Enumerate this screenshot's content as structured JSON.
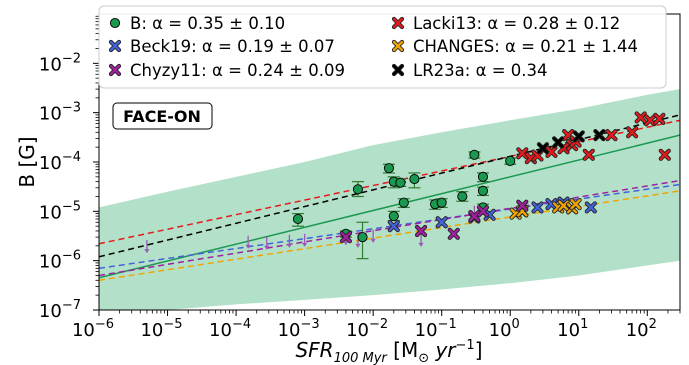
{
  "chart_data": {
    "type": "scatter",
    "xlabel": "SFR_{100 Myr} [M_⊙ yr^{-1}]",
    "ylabel": "B [G]",
    "xscale": "log",
    "yscale": "log",
    "xlim": [
      1e-06,
      300
    ],
    "ylim": [
      1e-07,
      0.1
    ],
    "annotation": "FACE-ON",
    "x_tick_labels": [
      "10^-6",
      "10^-5",
      "10^-4",
      "10^-3",
      "10^-2",
      "10^-1",
      "10^0",
      "10^1",
      "10^2"
    ],
    "y_tick_labels": [
      "10^-7",
      "10^-6",
      "10^-5",
      "10^-4",
      "10^-3",
      "10^-2"
    ],
    "legend": {
      "placement": "top",
      "entries": [
        {
          "key": "B",
          "label": "B: α = 0.35 ± 0.10",
          "color": "#1a9850",
          "marker": "circle"
        },
        {
          "key": "Lacki13",
          "label": "Lacki13: α = 0.28 ± 0.12",
          "color": "#e41a1c",
          "marker": "x"
        },
        {
          "key": "Beck19",
          "label": "Beck19: α = 0.19 ± 0.07",
          "color": "#4363d8",
          "marker": "x"
        },
        {
          "key": "CHANGES",
          "label": "CHANGES: α = 0.21 ± 1.44",
          "color": "#f0a500",
          "marker": "x"
        },
        {
          "key": "Chyzy11",
          "label": "Chyzy11: α = 0.24 ± 0.09",
          "color": "#a020a0",
          "marker": "x"
        },
        {
          "key": "LR23a",
          "label": "LR23a: α = 0.34",
          "color": "#000000",
          "marker": "x"
        }
      ]
    },
    "band": {
      "color": "#74c69d",
      "lower": [
        [
          1e-06,
          7e-08
        ],
        [
          1e-05,
          1e-07
        ],
        [
          0.0001,
          1.3e-07
        ],
        [
          0.001,
          1.6e-07
        ],
        [
          0.01,
          2e-07
        ],
        [
          0.1,
          2.6e-07
        ],
        [
          1,
          3.5e-07
        ],
        [
          10,
          5e-07
        ],
        [
          100,
          8e-07
        ],
        [
          300,
          1e-06
        ]
      ],
      "upper": [
        [
          1e-06,
          1.2e-05
        ],
        [
          1e-05,
          2.5e-05
        ],
        [
          0.0001,
          5e-05
        ],
        [
          0.001,
          0.0001
        ],
        [
          0.01,
          0.00022
        ],
        [
          0.1,
          0.0004
        ],
        [
          1,
          0.0007
        ],
        [
          10,
          0.0012
        ],
        [
          100,
          0.0023
        ],
        [
          300,
          0.003
        ]
      ]
    },
    "fit_lines": [
      {
        "series": "B",
        "color": "#1a9850",
        "dash": "solid",
        "points": [
          [
            1e-06,
            4.5e-07
          ],
          [
            300,
            0.00035
          ]
        ]
      },
      {
        "series": "Lacki13",
        "color": "#e41a1c",
        "dash": "dashed",
        "points": [
          [
            1e-06,
            2.2e-06
          ],
          [
            300,
            0.0007
          ]
        ]
      },
      {
        "series": "LR23a",
        "color": "#000000",
        "dash": "dashed",
        "points": [
          [
            1e-06,
            1.2e-06
          ],
          [
            300,
            0.0009
          ]
        ]
      },
      {
        "series": "Beck19",
        "color": "#4363d8",
        "dash": "dashed",
        "points": [
          [
            1e-06,
            7e-07
          ],
          [
            300,
            3.5e-05
          ]
        ]
      },
      {
        "series": "Chyzy11",
        "color": "#a020a0",
        "dash": "dashed",
        "points": [
          [
            1e-06,
            5e-07
          ],
          [
            300,
            4.2e-05
          ]
        ]
      },
      {
        "series": "CHANGES",
        "color": "#f0a500",
        "dash": "dashed",
        "points": [
          [
            1e-06,
            4e-07
          ],
          [
            300,
            2.6e-05
          ]
        ]
      }
    ],
    "series": [
      {
        "name": "B",
        "color": "#1a9850",
        "marker": "circle",
        "points": [
          {
            "x": 0.0008,
            "y": 7e-06,
            "yerr_lo": 5e-06,
            "yerr_hi": 9e-06
          },
          {
            "x": 0.004,
            "y": 3.5e-06,
            "yerr_lo": 3e-06,
            "yerr_hi": 4e-06
          },
          {
            "x": 0.006,
            "y": 2.8e-05,
            "yerr_lo": 2e-05,
            "yerr_hi": 4e-05
          },
          {
            "x": 0.007,
            "y": 3e-06,
            "yerr_lo": 1.1e-06,
            "yerr_hi": 6e-06
          },
          {
            "x": 0.017,
            "y": 7.5e-05,
            "yerr_lo": 6e-05,
            "yerr_hi": 9e-05
          },
          {
            "x": 0.02,
            "y": 4e-05,
            "yerr_lo": 3e-05,
            "yerr_hi": 5e-05
          },
          {
            "x": 0.025,
            "y": 3.8e-05,
            "yerr_lo": 3.2e-05,
            "yerr_hi": 4.5e-05
          },
          {
            "x": 0.028,
            "y": 1.5e-05,
            "yerr_lo": 1.2e-05,
            "yerr_hi": 1.8e-05
          },
          {
            "x": 0.02,
            "y": 8e-06,
            "yerr_lo": 6.5e-06,
            "yerr_hi": 1e-05
          },
          {
            "x": 0.04,
            "y": 4.5e-05,
            "yerr_lo": 3e-05,
            "yerr_hi": 6e-05
          },
          {
            "x": 0.08,
            "y": 1.4e-05,
            "yerr_lo": 1.1e-05,
            "yerr_hi": 1.7e-05
          },
          {
            "x": 0.1,
            "y": 1.5e-05,
            "yerr_lo": 1.2e-05,
            "yerr_hi": 1.8e-05
          },
          {
            "x": 0.3,
            "y": 0.00014,
            "yerr_lo": 0.00012,
            "yerr_hi": 0.00016
          },
          {
            "x": 0.2,
            "y": 2e-05,
            "yerr_lo": 1.6e-05,
            "yerr_hi": 2.5e-05
          },
          {
            "x": 0.4,
            "y": 1.2e-05,
            "yerr_lo": 1e-05,
            "yerr_hi": 1.4e-05
          },
          {
            "x": 0.4,
            "y": 2.6e-05,
            "yerr_lo": 2.1e-05,
            "yerr_hi": 3.1e-05
          },
          {
            "x": 0.4,
            "y": 5e-05,
            "yerr_lo": 4e-05,
            "yerr_hi": 6e-05
          },
          {
            "x": 1.0,
            "y": 0.000105,
            "yerr_lo": 9e-05,
            "yerr_hi": 0.00012
          }
        ]
      },
      {
        "name": "Lacki13",
        "color": "#e41a1c",
        "marker": "x",
        "points": [
          {
            "x": 1.5,
            "y": 0.00015
          },
          {
            "x": 2.0,
            "y": 0.00012
          },
          {
            "x": 2.5,
            "y": 0.000135
          },
          {
            "x": 4,
            "y": 0.00016
          },
          {
            "x": 6,
            "y": 0.00019
          },
          {
            "x": 7,
            "y": 0.00035
          },
          {
            "x": 8,
            "y": 0.00022
          },
          {
            "x": 9,
            "y": 0.00026
          },
          {
            "x": 14,
            "y": 0.00014
          },
          {
            "x": 30,
            "y": 0.00035
          },
          {
            "x": 60,
            "y": 0.0004
          },
          {
            "x": 80,
            "y": 0.0008
          },
          {
            "x": 110,
            "y": 0.0007
          },
          {
            "x": 150,
            "y": 0.00075
          },
          {
            "x": 180,
            "y": 0.00014
          }
        ]
      },
      {
        "name": "Beck19",
        "color": "#4363d8",
        "marker": "x",
        "points": [
          {
            "x": 0.02,
            "y": 5e-06
          },
          {
            "x": 0.1,
            "y": 6e-06
          },
          {
            "x": 0.3,
            "y": 7.5e-06
          },
          {
            "x": 0.5,
            "y": 8.5e-06
          },
          {
            "x": 1.5,
            "y": 1e-05
          },
          {
            "x": 2.5,
            "y": 1.2e-05
          },
          {
            "x": 4,
            "y": 1.4e-05
          },
          {
            "x": 6,
            "y": 1.5e-05
          },
          {
            "x": 15,
            "y": 1.2e-05
          }
        ]
      },
      {
        "name": "CHANGES",
        "color": "#f0a500",
        "marker": "x",
        "points": [
          {
            "x": 1.2,
            "y": 9e-06
          },
          {
            "x": 1.5,
            "y": 1e-05
          },
          {
            "x": 5,
            "y": 1.2e-05
          },
          {
            "x": 6,
            "y": 1.3e-05
          },
          {
            "x": 8,
            "y": 1.15e-05
          },
          {
            "x": 9,
            "y": 1.4e-05
          }
        ]
      },
      {
        "name": "Chyzy11",
        "color": "#a020a0",
        "marker": "x",
        "points": [
          {
            "x": 0.004,
            "y": 3e-06
          },
          {
            "x": 0.05,
            "y": 4e-06
          },
          {
            "x": 0.15,
            "y": 3.5e-06
          },
          {
            "x": 0.3,
            "y": 8e-06
          },
          {
            "x": 0.4,
            "y": 1e-05
          },
          {
            "x": 1.5,
            "y": 1.3e-05
          }
        ]
      },
      {
        "name": "LR23a",
        "color": "#000000",
        "marker": "x",
        "points": [
          {
            "x": 3,
            "y": 0.00019
          },
          {
            "x": 5,
            "y": 0.00025
          },
          {
            "x": 10,
            "y": 0.00033
          },
          {
            "x": 20,
            "y": 0.00035
          }
        ]
      },
      {
        "name": "Chyzy11-upper-limits",
        "color": "#9a5ab5",
        "marker": "down-arrow",
        "points": [
          {
            "x": 5e-06,
            "y": 1.8e-06
          },
          {
            "x": 0.00015,
            "y": 2.2e-06
          },
          {
            "x": 0.00028,
            "y": 2.1e-06
          },
          {
            "x": 0.0006,
            "y": 2.3e-06
          },
          {
            "x": 0.001,
            "y": 2.4e-06
          },
          {
            "x": 0.004,
            "y": 2.6e-06
          },
          {
            "x": 0.006,
            "y": 2.3e-06
          },
          {
            "x": 0.01,
            "y": 2.9e-06
          },
          {
            "x": 0.05,
            "y": 2.4e-06
          },
          {
            "x": 0.3,
            "y": 9e-06
          }
        ]
      }
    ]
  }
}
